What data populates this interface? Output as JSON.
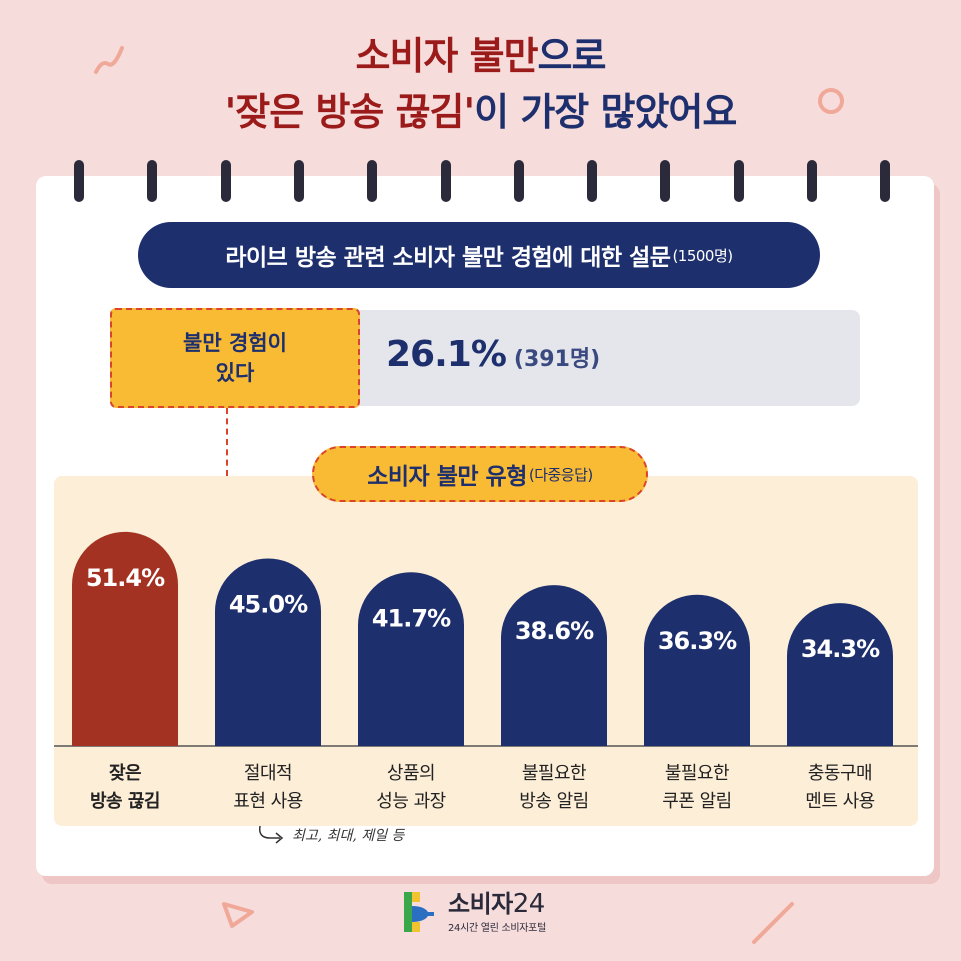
{
  "header": {
    "line1_part1": "소비자 불만",
    "line1_part2": "으로",
    "line2_part1": "'잦은 방송 끊김'",
    "line2_part2": "이 가장 많았어요"
  },
  "survey": {
    "title": "라이브 방송 관련 소비자 불만 경험에 대한 설문",
    "sample": "(1500명)"
  },
  "summary": {
    "label_line1": "불만 경험이",
    "label_line2": "있다",
    "percent": "26.1%",
    "count": "(391명)"
  },
  "complaint_types": {
    "title": "소비자 불만 유형",
    "subtitle": "(다중응답)"
  },
  "chart_data": {
    "type": "bar",
    "title": "소비자 불만 유형",
    "categories": [
      [
        "잦은",
        "방송 끊김"
      ],
      [
        "절대적",
        "표현 사용"
      ],
      [
        "상품의",
        "성능 과장"
      ],
      [
        "불필요한",
        "방송 알림"
      ],
      [
        "불필요한",
        "쿠폰 알림"
      ],
      [
        "충동구매",
        "멘트 사용"
      ]
    ],
    "values": [
      51.4,
      45.0,
      41.7,
      38.6,
      36.3,
      34.3
    ],
    "value_labels": [
      "51.4%",
      "45.0%",
      "41.7%",
      "38.6%",
      "36.3%",
      "34.3%"
    ],
    "ylim": [
      0,
      60
    ],
    "grid": false,
    "highlight_index": 0,
    "colors": {
      "highlight": "#a33222",
      "default": "#1e2f6e"
    }
  },
  "note": "최고, 최대, 제일 등",
  "logo": {
    "name": "소비자",
    "number": "24",
    "tagline": "24시간 열린 소비자포털"
  },
  "colors": {
    "background": "#f7dcdc",
    "navy": "#1e2f6e",
    "red_title": "#9b1b1b",
    "yellow": "#f9bb33",
    "dashed_red": "#d9442a",
    "panel": "#fdeed8"
  }
}
